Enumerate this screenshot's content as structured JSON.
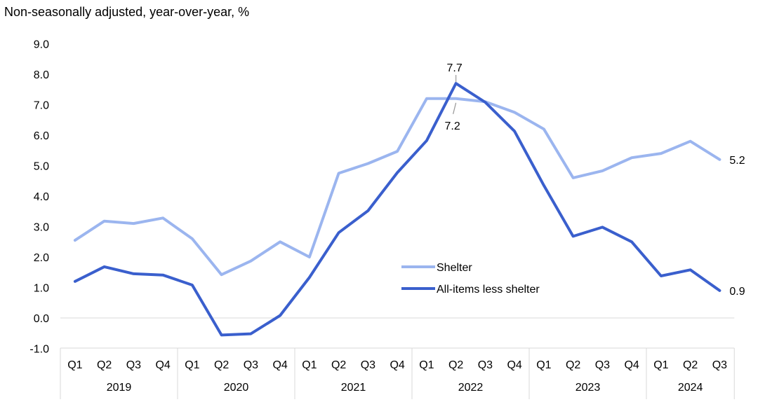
{
  "chart_data": {
    "type": "line",
    "title": "Non-seasonally adjusted, year-over-year, %",
    "xlabel": "",
    "ylabel": "",
    "ylim": [
      -1.0,
      9.0
    ],
    "yticks": [
      "9.0",
      "8.0",
      "7.0",
      "6.0",
      "5.0",
      "4.0",
      "3.0",
      "2.0",
      "1.0",
      "0.0",
      "-1.0"
    ],
    "quarters": [
      "Q1",
      "Q2",
      "Q3",
      "Q4",
      "Q1",
      "Q2",
      "Q3",
      "Q4",
      "Q1",
      "Q2",
      "Q3",
      "Q4",
      "Q1",
      "Q2",
      "Q3",
      "Q4",
      "Q1",
      "Q2",
      "Q3",
      "Q4",
      "Q1",
      "Q2",
      "Q3"
    ],
    "years": [
      "2019",
      "2020",
      "2021",
      "2022",
      "2023",
      "2024"
    ],
    "grid": false,
    "legend_position": "center-right",
    "series": [
      {
        "name": "Shelter",
        "color": "#9bb5ef",
        "values": [
          2.55,
          3.18,
          3.1,
          3.28,
          2.6,
          1.42,
          1.87,
          2.5,
          2.0,
          4.75,
          5.07,
          5.47,
          7.2,
          7.2,
          7.1,
          6.75,
          6.2,
          4.6,
          4.83,
          5.26,
          5.4,
          5.8,
          5.2
        ],
        "end_label": "5.2"
      },
      {
        "name": "All-items less shelter",
        "color": "#3a5fcd",
        "values": [
          1.2,
          1.68,
          1.45,
          1.41,
          1.08,
          -0.56,
          -0.52,
          0.08,
          1.33,
          2.8,
          3.52,
          4.77,
          5.82,
          7.7,
          7.08,
          6.13,
          4.35,
          2.68,
          2.98,
          2.5,
          1.38,
          1.58,
          0.9
        ],
        "end_label": "0.9"
      }
    ],
    "annotations": [
      {
        "text": "7.7",
        "series": "All-items less shelter",
        "index": 13
      },
      {
        "text": "7.2",
        "series": "Shelter",
        "index": 13
      },
      {
        "text": "5.2",
        "series": "Shelter",
        "index": 22
      },
      {
        "text": "0.9",
        "series": "All-items less shelter",
        "index": 22
      }
    ]
  }
}
